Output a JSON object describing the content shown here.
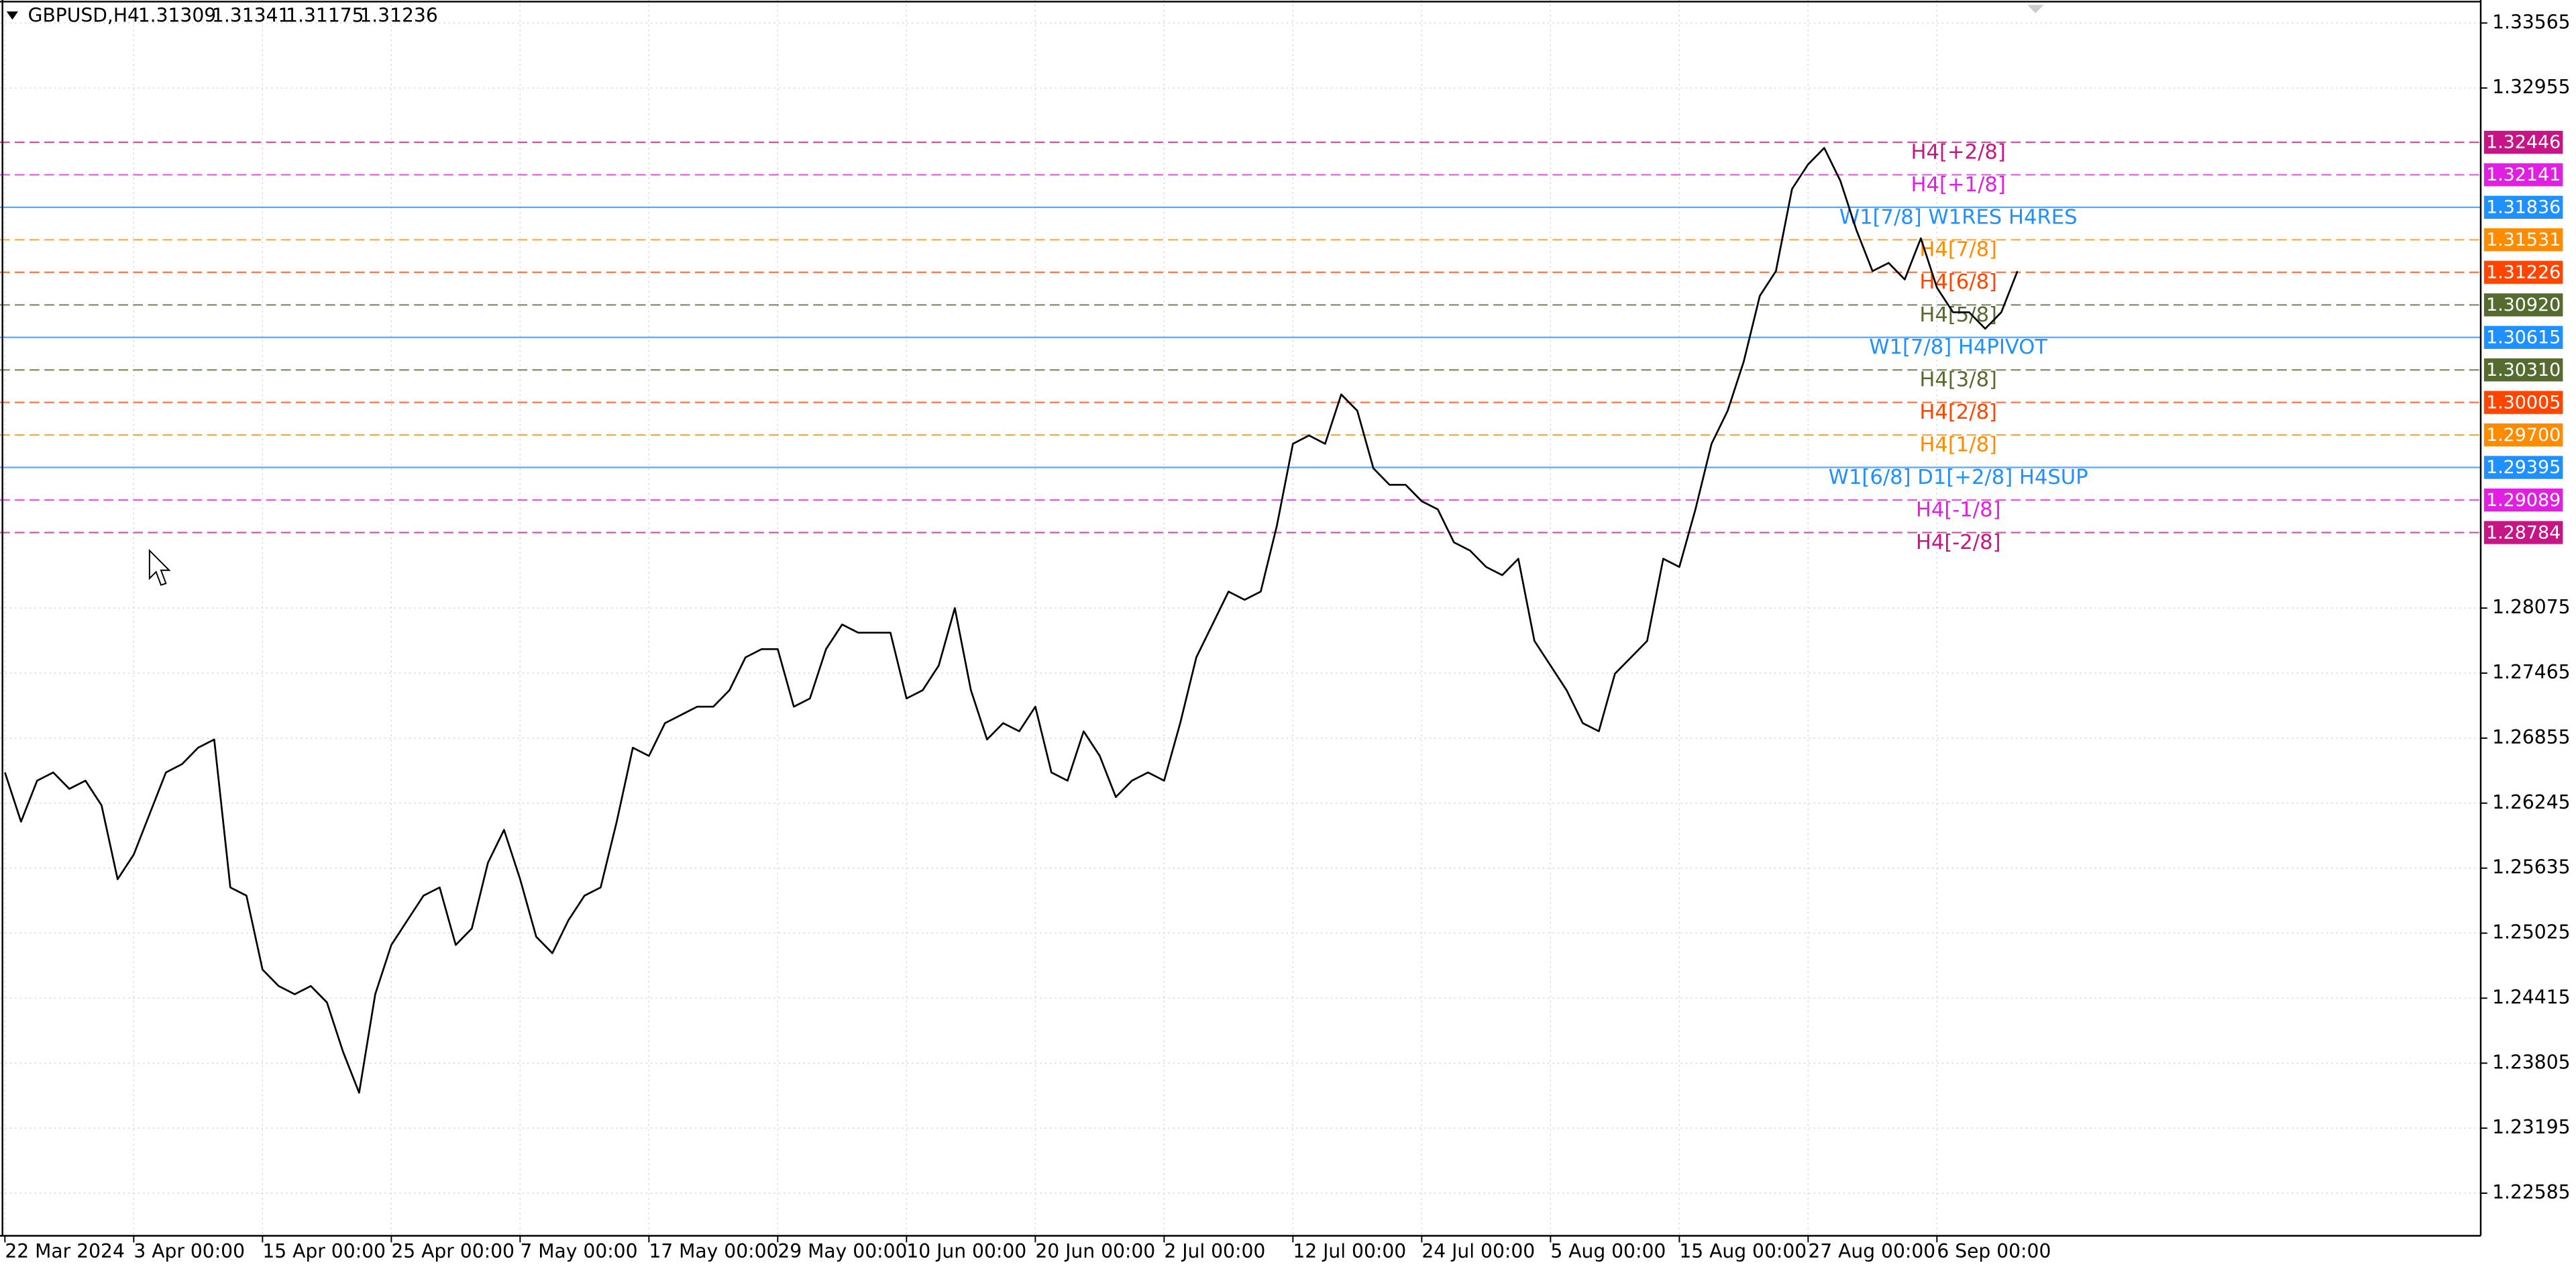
{
  "header": {
    "symbol": "GBPUSD,H4",
    "quote": [
      1.31309,
      1.31341,
      1.31175,
      1.31236
    ]
  },
  "chart_data": {
    "type": "line",
    "color": "#000000",
    "x": [
      "22 Mar",
      "25 Mar",
      "26 Mar",
      "27 Mar",
      "28 Mar",
      "29 Mar",
      "1 Apr",
      "2 Apr",
      "3 Apr",
      "4 Apr",
      "5 Apr",
      "8 Apr",
      "9 Apr",
      "10 Apr",
      "11 Apr",
      "12 Apr",
      "15 Apr",
      "16 Apr",
      "17 Apr",
      "18 Apr",
      "19 Apr",
      "22 Apr",
      "23 Apr",
      "24 Apr",
      "25 Apr",
      "26 Apr",
      "29 Apr",
      "30 Apr",
      "1 May",
      "2 May",
      "3 May",
      "6 May",
      "7 May",
      "8 May",
      "9 May",
      "10 May",
      "13 May",
      "14 May",
      "15 May",
      "16 May",
      "17 May",
      "20 May",
      "21 May",
      "22 May",
      "23 May",
      "24 May",
      "27 May",
      "28 May",
      "29 May",
      "30 May",
      "31 May",
      "3 Jun",
      "4 Jun",
      "5 Jun",
      "6 Jun",
      "7 Jun",
      "10 Jun",
      "11 Jun",
      "12 Jun",
      "13 Jun",
      "14 Jun",
      "17 Jun",
      "18 Jun",
      "19 Jun",
      "20 Jun",
      "21 Jun",
      "24 Jun",
      "25 Jun",
      "26 Jun",
      "27 Jun",
      "28 Jun",
      "1 Jul",
      "2 Jul",
      "3 Jul",
      "4 Jul",
      "5 Jul",
      "8 Jul",
      "9 Jul",
      "10 Jul",
      "11 Jul",
      "12 Jul",
      "15 Jul",
      "16 Jul",
      "17 Jul",
      "18 Jul",
      "19 Jul",
      "22 Jul",
      "23 Jul",
      "24 Jul",
      "25 Jul",
      "26 Jul",
      "29 Jul",
      "30 Jul",
      "31 Jul",
      "1 Aug",
      "2 Aug",
      "5 Aug",
      "6 Aug",
      "7 Aug",
      "8 Aug",
      "9 Aug",
      "12 Aug",
      "13 Aug",
      "14 Aug",
      "15 Aug",
      "16 Aug",
      "19 Aug",
      "20 Aug",
      "21 Aug",
      "22 Aug",
      "23 Aug",
      "26 Aug",
      "27 Aug",
      "28 Aug",
      "29 Aug",
      "30 Aug",
      "2 Sep",
      "3 Sep",
      "4 Sep",
      "5 Sep",
      "6 Sep",
      "9 Sep",
      "10 Sep",
      "11 Sep",
      "12 Sep",
      "13 Sep"
    ],
    "values": [
      1.26533,
      1.26071,
      1.26456,
      1.26533,
      1.26379,
      1.26456,
      1.26225,
      1.25531,
      1.25762,
      1.26148,
      1.26533,
      1.26611,
      1.26765,
      1.26842,
      1.25454,
      1.25377,
      1.24683,
      1.24529,
      1.24452,
      1.24529,
      1.24375,
      1.23912,
      1.23527,
      1.24452,
      1.24914,
      1.25146,
      1.25377,
      1.25454,
      1.24914,
      1.25069,
      1.25685,
      1.25994,
      1.25531,
      1.24991,
      1.24837,
      1.25146,
      1.25377,
      1.25454,
      1.26071,
      1.26765,
      1.26688,
      1.26996,
      1.27073,
      1.2715,
      1.2715,
      1.27304,
      1.27613,
      1.2769,
      1.2769,
      1.2715,
      1.27227,
      1.2769,
      1.27921,
      1.27844,
      1.27844,
      1.27844,
      1.27227,
      1.27304,
      1.27536,
      1.28075,
      1.27304,
      1.26842,
      1.26996,
      1.26919,
      1.2715,
      1.26533,
      1.26456,
      1.26919,
      1.26688,
      1.26302,
      1.26456,
      1.26533,
      1.26456,
      1.26996,
      1.27613,
      1.27921,
      1.2823,
      1.28153,
      1.2823,
      1.28846,
      1.29617,
      1.29695,
      1.29617,
      1.3008,
      1.29926,
      1.29386,
      1.29232,
      1.29232,
      1.29078,
      1.29001,
      1.28692,
      1.28615,
      1.28461,
      1.28384,
      1.28538,
      1.27767,
      1.27536,
      1.27304,
      1.26996,
      1.26919,
      1.27459,
      1.27613,
      1.27767,
      1.28538,
      1.28461,
      1.29001,
      1.29617,
      1.29926,
      1.30388,
      1.31005,
      1.31237,
      1.32008,
      1.32239,
      1.32393,
      1.32085,
      1.31622,
      1.31237,
      1.31314,
      1.31159,
      1.31545,
      1.31082,
      1.30851,
      1.30851,
      1.30697,
      1.30851,
      1.31236
    ],
    "xticks": [
      {
        "value": "22 Mar",
        "label": "22 Mar 2024"
      },
      {
        "value": "3 Apr",
        "label": "3 Apr 00:00"
      },
      {
        "value": "15 Apr",
        "label": "15 Apr 00:00"
      },
      {
        "value": "25 Apr",
        "label": "25 Apr 00:00"
      },
      {
        "value": "7 May",
        "label": "7 May 00:00"
      },
      {
        "value": "17 May",
        "label": "17 May 00:00"
      },
      {
        "value": "29 May",
        "label": "29 May 00:00"
      },
      {
        "value": "10 Jun",
        "label": "10 Jun 00:00"
      },
      {
        "value": "20 Jun",
        "label": "20 Jun 00:00"
      },
      {
        "value": "2 Jul",
        "label": "2 Jul 00:00"
      },
      {
        "value": "12 Jul",
        "label": "12 Jul 00:00"
      },
      {
        "value": "24 Jul",
        "label": "24 Jul 00:00"
      },
      {
        "value": "5 Aug",
        "label": "5 Aug 00:00"
      },
      {
        "value": "15 Aug",
        "label": "15 Aug 00:00"
      },
      {
        "value": "27 Aug",
        "label": "27 Aug 00:00"
      },
      {
        "value": "6 Sep",
        "label": "6 Sep 00:00"
      }
    ],
    "ylim": [
      1.22185,
      1.33781
    ],
    "yticks": [
      1.33565,
      1.32955,
      1.28075,
      1.27465,
      1.26855,
      1.26245,
      1.25635,
      1.25025,
      1.24415,
      1.23805,
      1.23195,
      1.22585
    ],
    "grid": true,
    "levels": {
      "names": [
        "H4[+2/8]",
        "H4[+1/8]",
        "W1[7/8] W1RES H4RES",
        "H4[7/8]",
        "H4[6/8]",
        "H4[5/8]",
        "W1[7/8] H4PIVOT",
        "H4[3/8]",
        "H4[2/8]",
        "H4[1/8]",
        "W1[6/8] D1[+2/8] H4SUP",
        "H4[-1/8]",
        "H4[-2/8]"
      ],
      "values": [
        1.32446,
        1.32141,
        1.31836,
        1.31531,
        1.31226,
        1.3092,
        1.30615,
        1.3031,
        1.30005,
        1.297,
        1.29395,
        1.29089,
        1.28784
      ],
      "value_labels": [
        "1.32446",
        "1.32141",
        "1.31836",
        "1.31531",
        "1.31226",
        "1.30920",
        "1.30615",
        "1.30310",
        "1.30005",
        "1.29700",
        "1.29395",
        "1.29089",
        "1.28784"
      ],
      "colors": [
        "#c71585",
        "#e020e0",
        "#1e90ff",
        "#ff8c00",
        "#ff4500",
        "#556b2f",
        "#1e90ff",
        "#556b2f",
        "#ff4500",
        "#ff8c00",
        "#1e90ff",
        "#e020e0",
        "#c71585"
      ],
      "styles": [
        "dashed",
        "dashed",
        "solid",
        "dashed",
        "dashed",
        "dashed",
        "solid",
        "dashed",
        "dashed",
        "dashed",
        "solid",
        "dashed",
        "dashed"
      ]
    }
  }
}
